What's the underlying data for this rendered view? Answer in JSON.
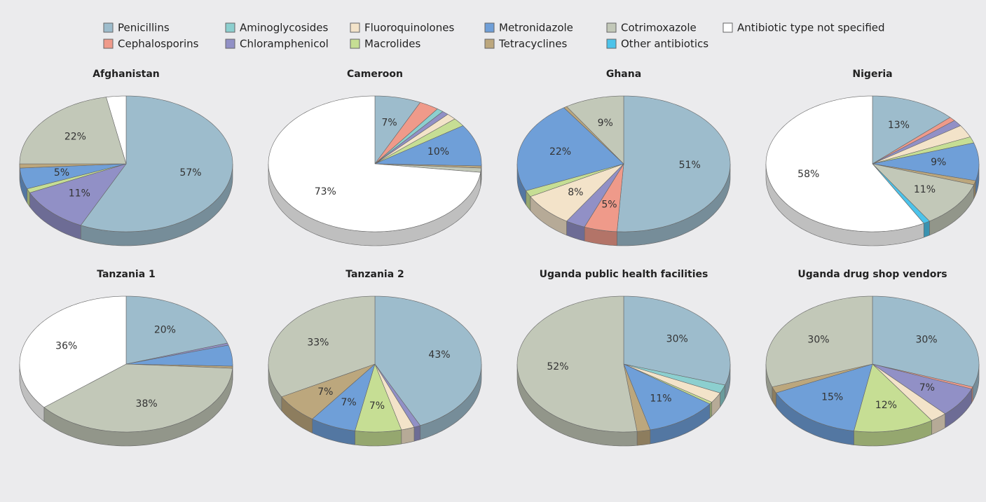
{
  "chart_data": [
    {
      "type": "pie",
      "title": "Afghanistan",
      "categories": [
        "Penicillins",
        "Cephalosporins",
        "Aminoglycosides",
        "Chloramphenicol",
        "Fluoroquinolones",
        "Macrolides",
        "Metronidazole",
        "Tetracyclines",
        "Cotrimoxazole",
        "Other antibiotics",
        "Antibiotic type not specified"
      ],
      "colors": [
        "#9dbccc",
        "#ef9a8a",
        "#8ccfcf",
        "#9190c6",
        "#f3e3c9",
        "#c6de94",
        "#6f9fd8",
        "#bca77d",
        "#c2c8b8",
        "#4cc3ea",
        "#ffffff"
      ],
      "values": [
        57,
        0,
        0,
        11,
        0,
        1,
        5,
        1,
        22,
        0,
        3
      ],
      "value_labels": [
        "57%",
        null,
        null,
        "11%",
        null,
        null,
        "5%",
        null,
        "22%",
        null,
        null
      ]
    },
    {
      "type": "pie",
      "title": "Cameroon",
      "categories": [
        "Penicillins",
        "Cephalosporins",
        "Aminoglycosides",
        "Chloramphenicol",
        "Fluoroquinolones",
        "Macrolides",
        "Metronidazole",
        "Tetracyclines",
        "Cotrimoxazole",
        "Other antibiotics",
        "Antibiotic type not specified"
      ],
      "colors": [
        "#9dbccc",
        "#ef9a8a",
        "#8ccfcf",
        "#9190c6",
        "#f3e3c9",
        "#c6de94",
        "#6f9fd8",
        "#bca77d",
        "#c2c8b8",
        "#4cc3ea",
        "#ffffff"
      ],
      "values": [
        7,
        3,
        1,
        1,
        1.5,
        2,
        10,
        0.5,
        1,
        0,
        73
      ],
      "value_labels": [
        "7%",
        null,
        null,
        null,
        null,
        null,
        "10%",
        null,
        null,
        null,
        "73%"
      ]
    },
    {
      "type": "pie",
      "title": "Ghana",
      "categories": [
        "Penicillins",
        "Cephalosporins",
        "Aminoglycosides",
        "Chloramphenicol",
        "Fluoroquinolones",
        "Macrolides",
        "Metronidazole",
        "Tetracyclines",
        "Cotrimoxazole",
        "Other antibiotics",
        "Antibiotic type not specified"
      ],
      "colors": [
        "#9dbccc",
        "#ef9a8a",
        "#8ccfcf",
        "#9190c6",
        "#f3e3c9",
        "#c6de94",
        "#6f9fd8",
        "#bca77d",
        "#c2c8b8",
        "#4cc3ea",
        "#ffffff"
      ],
      "values": [
        51,
        5,
        0,
        3,
        8,
        1.5,
        22,
        0.5,
        9,
        0,
        0
      ],
      "value_labels": [
        "51%",
        "5%",
        null,
        null,
        "8%",
        null,
        "22%",
        null,
        "9%",
        null,
        null
      ]
    },
    {
      "type": "pie",
      "title": "Nigeria",
      "categories": [
        "Penicillins",
        "Cephalosporins",
        "Aminoglycosides",
        "Chloramphenicol",
        "Fluoroquinolones",
        "Macrolides",
        "Metronidazole",
        "Tetracyclines",
        "Cotrimoxazole",
        "Other antibiotics",
        "Antibiotic type not specified"
      ],
      "colors": [
        "#9dbccc",
        "#ef9a8a",
        "#8ccfcf",
        "#9190c6",
        "#f3e3c9",
        "#c6de94",
        "#6f9fd8",
        "#bca77d",
        "#c2c8b8",
        "#4cc3ea",
        "#ffffff"
      ],
      "values": [
        13,
        1,
        0,
        1.5,
        3,
        1.5,
        9,
        1,
        11,
        1,
        58
      ],
      "value_labels": [
        "13%",
        null,
        null,
        null,
        null,
        null,
        "9%",
        null,
        "11%",
        null,
        "58%"
      ]
    },
    {
      "type": "pie",
      "title": "Tanzania 1",
      "categories": [
        "Penicillins",
        "Cephalosporins",
        "Aminoglycosides",
        "Chloramphenicol",
        "Fluoroquinolones",
        "Macrolides",
        "Metronidazole",
        "Tetracyclines",
        "Cotrimoxazole",
        "Other antibiotics",
        "Antibiotic type not specified"
      ],
      "colors": [
        "#9dbccc",
        "#ef9a8a",
        "#8ccfcf",
        "#9190c6",
        "#f3e3c9",
        "#c6de94",
        "#6f9fd8",
        "#bca77d",
        "#c2c8b8",
        "#4cc3ea",
        "#ffffff"
      ],
      "values": [
        20,
        0,
        0,
        0.5,
        0,
        0,
        5,
        0.5,
        38,
        0,
        36
      ],
      "value_labels": [
        "20%",
        null,
        null,
        null,
        null,
        null,
        null,
        null,
        "38%",
        null,
        "36%"
      ]
    },
    {
      "type": "pie",
      "title": "Tanzania 2",
      "categories": [
        "Penicillins",
        "Cephalosporins",
        "Aminoglycosides",
        "Chloramphenicol",
        "Fluoroquinolones",
        "Macrolides",
        "Metronidazole",
        "Tetracyclines",
        "Cotrimoxazole",
        "Other antibiotics",
        "Antibiotic type not specified"
      ],
      "colors": [
        "#9dbccc",
        "#ef9a8a",
        "#8ccfcf",
        "#9190c6",
        "#f3e3c9",
        "#c6de94",
        "#6f9fd8",
        "#bca77d",
        "#c2c8b8",
        "#4cc3ea",
        "#ffffff"
      ],
      "values": [
        43,
        0,
        0,
        1,
        2,
        7,
        7,
        7,
        33,
        0,
        0
      ],
      "value_labels": [
        "43%",
        null,
        null,
        null,
        null,
        "7%",
        "7%",
        "7%",
        "33%",
        null,
        null
      ]
    },
    {
      "type": "pie",
      "title": "Uganda public health facilities",
      "categories": [
        "Penicillins",
        "Cephalosporins",
        "Aminoglycosides",
        "Chloramphenicol",
        "Fluoroquinolones",
        "Macrolides",
        "Metronidazole",
        "Tetracyclines",
        "Cotrimoxazole",
        "Other antibiotics",
        "Antibiotic type not specified"
      ],
      "colors": [
        "#9dbccc",
        "#ef9a8a",
        "#8ccfcf",
        "#9190c6",
        "#f3e3c9",
        "#c6de94",
        "#6f9fd8",
        "#bca77d",
        "#c2c8b8",
        "#4cc3ea",
        "#ffffff"
      ],
      "values": [
        30,
        0,
        2,
        0,
        2.5,
        0.5,
        11,
        2,
        52,
        0,
        0
      ],
      "value_labels": [
        "30%",
        null,
        null,
        null,
        null,
        null,
        "11%",
        null,
        "52%",
        null,
        null
      ]
    },
    {
      "type": "pie",
      "title": "Uganda drug shop vendors",
      "categories": [
        "Penicillins",
        "Cephalosporins",
        "Aminoglycosides",
        "Chloramphenicol",
        "Fluoroquinolones",
        "Macrolides",
        "Metronidazole",
        "Tetracyclines",
        "Cotrimoxazole",
        "Other antibiotics",
        "Antibiotic type not specified"
      ],
      "colors": [
        "#9dbccc",
        "#ef9a8a",
        "#8ccfcf",
        "#9190c6",
        "#f3e3c9",
        "#c6de94",
        "#6f9fd8",
        "#bca77d",
        "#c2c8b8",
        "#4cc3ea",
        "#ffffff"
      ],
      "values": [
        30,
        0.5,
        0,
        7,
        2.5,
        12,
        15,
        1.5,
        30,
        0,
        0
      ],
      "value_labels": [
        "30%",
        null,
        null,
        "7%",
        null,
        "12%",
        "15%",
        null,
        "30%",
        null,
        null
      ]
    }
  ]
}
